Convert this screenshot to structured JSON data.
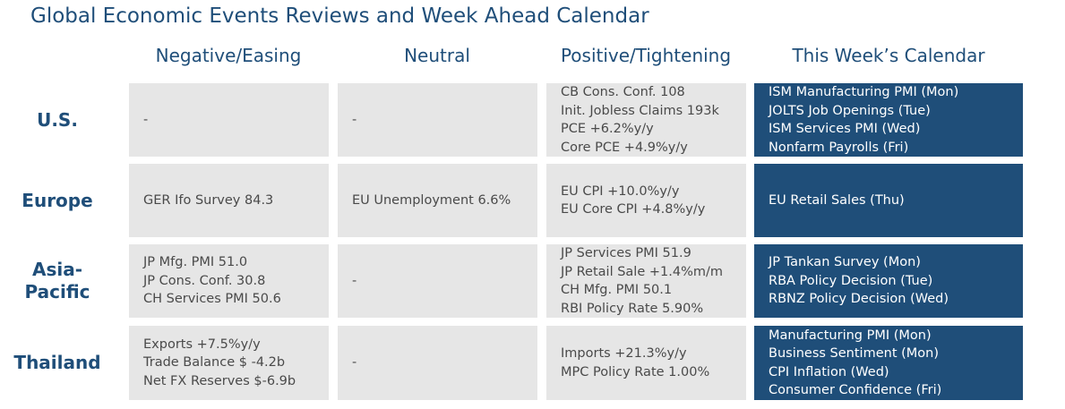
{
  "title": "Global Economic Events Reviews and Week Ahead Calendar",
  "columns": [
    "Negative/Easing",
    "Neutral",
    "Positive/Tightening",
    "This Week’s Calendar"
  ],
  "colors": {
    "heading": "#1f4e79",
    "cell_bg": "#e6e6e6",
    "calendar_bg": "#1f4e79",
    "calendar_text": "#ffffff",
    "cell_text": "#4a4a4a"
  },
  "rows": [
    {
      "label": "U.S.",
      "negative": [
        "-"
      ],
      "neutral": [
        "-"
      ],
      "positive": [
        "CB Cons. Conf. 108",
        "Init. Jobless Claims 193k",
        "PCE +6.2%y/y",
        "Core PCE +4.9%y/y"
      ],
      "calendar": [
        "ISM Manufacturing PMI (Mon)",
        "JOLTS Job Openings (Tue)",
        "ISM Services PMI (Wed)",
        "Nonfarm Payrolls (Fri)"
      ]
    },
    {
      "label": "Europe",
      "negative": [
        "GER Ifo Survey 84.3"
      ],
      "neutral": [
        "EU Unemployment 6.6%"
      ],
      "positive": [
        "EU CPI +10.0%y/y",
        "EU Core CPI +4.8%y/y"
      ],
      "calendar": [
        "EU Retail Sales (Thu)"
      ]
    },
    {
      "label": "Asia-Pacific",
      "label_lines": [
        "Asia-",
        "Pacific"
      ],
      "negative": [
        "JP Mfg. PMI 51.0",
        "JP Cons. Conf. 30.8",
        "CH Services PMI 50.6"
      ],
      "neutral": [
        "-"
      ],
      "positive": [
        "JP Services PMI 51.9",
        "JP Retail Sale +1.4%m/m",
        "CH Mfg. PMI 50.1",
        "RBI Policy Rate 5.90%"
      ],
      "calendar": [
        "JP Tankan Survey (Mon)",
        "RBA Policy Decision (Tue)",
        "RBNZ Policy Decision (Wed)"
      ]
    },
    {
      "label": "Thailand",
      "negative": [
        "Exports +7.5%y/y",
        "Trade Balance $ -4.2b",
        "Net FX Reserves $-6.9b"
      ],
      "neutral": [
        "-"
      ],
      "positive": [
        "Imports +21.3%y/y",
        "MPC Policy Rate 1.00%"
      ],
      "calendar": [
        "Manufacturing PMI (Mon)",
        "Business Sentiment (Mon)",
        "CPI Inflation (Wed)",
        "Consumer Confidence (Fri)"
      ]
    }
  ]
}
